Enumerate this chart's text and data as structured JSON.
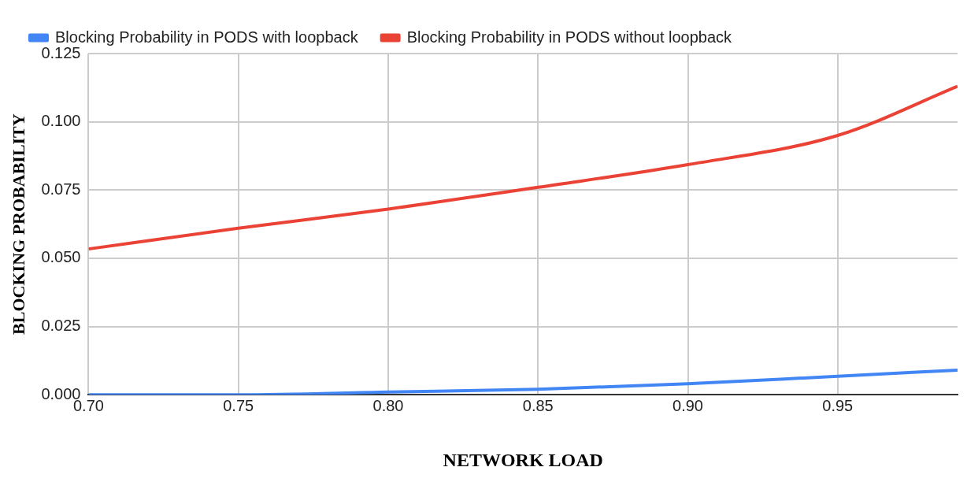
{
  "chart_data": {
    "type": "line",
    "xlabel": "NETWORK LOAD",
    "ylabel": "BLOCKING PROBABILITY",
    "x": [
      0.7,
      0.75,
      0.8,
      0.85,
      0.9,
      0.95,
      0.99
    ],
    "series": [
      {
        "name": "Blocking Probability in PODS with loopback",
        "color": "#4285f4",
        "values": [
          0,
          0,
          0.001,
          0.002,
          0.004,
          0.0068,
          0.009
        ]
      },
      {
        "name": "Blocking Probability in PODS without loopback",
        "color": "#ea4335",
        "values": [
          0.0534,
          0.061,
          0.068,
          0.076,
          0.0843,
          0.095,
          0.113
        ]
      }
    ],
    "xlim": [
      0.7,
      0.99
    ],
    "xticks": [
      {
        "value": 0.7,
        "label": "0.70"
      },
      {
        "value": 0.75,
        "label": "0.75"
      },
      {
        "value": 0.8,
        "label": "0.80"
      },
      {
        "value": 0.85,
        "label": "0.85"
      },
      {
        "value": 0.9,
        "label": "0.90"
      },
      {
        "value": 0.95,
        "label": "0.95"
      }
    ],
    "ylim": [
      0,
      0.125
    ],
    "yticks": [
      {
        "value": 0,
        "label": "0.000"
      },
      {
        "value": 0.025,
        "label": "0.025"
      },
      {
        "value": 0.05,
        "label": "0.050"
      },
      {
        "value": 0.075,
        "label": "0.075"
      },
      {
        "value": 0.1,
        "label": "0.100"
      },
      {
        "value": 0.125,
        "label": "0.125"
      }
    ],
    "grid": true,
    "legend": "top",
    "marker": "none",
    "line_style": "solid"
  }
}
